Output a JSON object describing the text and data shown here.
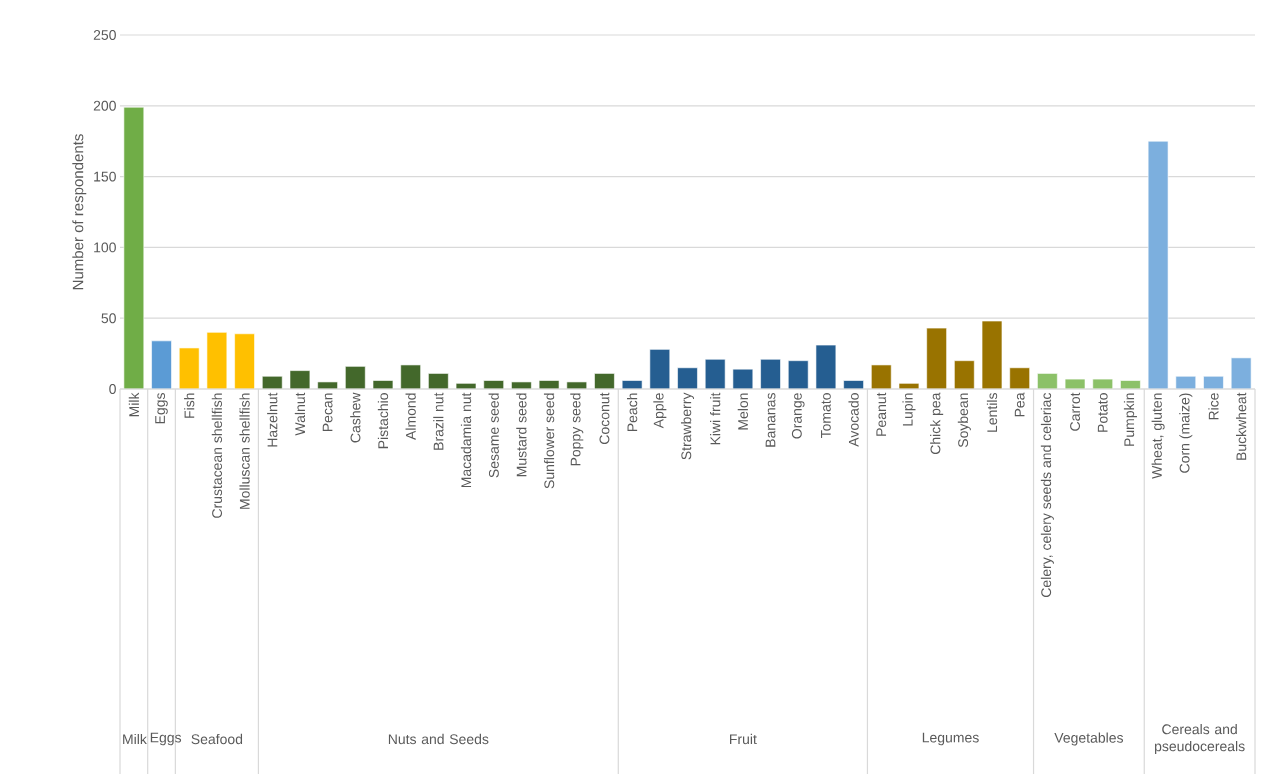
{
  "chart_data": {
    "type": "bar",
    "ylabel": "Number of respondents",
    "categories": [
      "Milk",
      "Eggs",
      "Fish",
      "Crustacean shellfish",
      "Molluscan shellfish",
      "Hazelnut",
      "Walnut",
      "Pecan",
      "Cashew",
      "Pistachio",
      "Almond",
      "Brazil nut",
      "Macadamia nut",
      "Sesame seed",
      "Mustard seed",
      "Sunflower seed",
      "Poppy seed",
      "Coconut",
      "Peach",
      "Apple",
      "Strawberry",
      "Kiwi fruit",
      "Melon",
      "Bananas",
      "Orange",
      "Tomato",
      "Avocado",
      "Peanut",
      "Lupin",
      "Chick pea",
      "Soybean",
      "Lentils",
      "Pea",
      "Celery, celery seeds and celeriac",
      "Carrot",
      "Potato",
      "Pumpkin",
      "Wheat, gluten",
      "Corn (maize)",
      "Rice",
      "Buckwheat"
    ],
    "series": [
      {
        "color": "#70ad47",
        "values": [
          199,
          null,
          null,
          null,
          null,
          null,
          null,
          null,
          null,
          null,
          null,
          null,
          null,
          null,
          null,
          null,
          null,
          null,
          null,
          null,
          null,
          null,
          null,
          null,
          null,
          null,
          null,
          null,
          null,
          null,
          null,
          null,
          null,
          null,
          null,
          null,
          null,
          null,
          null,
          null,
          null
        ]
      },
      {
        "color": "#5b9bd5",
        "values": [
          null,
          34,
          null,
          null,
          null,
          null,
          null,
          null,
          null,
          null,
          null,
          null,
          null,
          null,
          null,
          null,
          null,
          null,
          null,
          null,
          null,
          null,
          null,
          null,
          null,
          null,
          null,
          null,
          null,
          null,
          null,
          null,
          null,
          null,
          null,
          null,
          null,
          null,
          null,
          null,
          null
        ]
      },
      {
        "color": "#ffc000",
        "values": [
          null,
          null,
          29,
          40,
          39,
          null,
          null,
          null,
          null,
          null,
          null,
          null,
          null,
          null,
          null,
          null,
          null,
          null,
          null,
          null,
          null,
          null,
          null,
          null,
          null,
          null,
          null,
          null,
          null,
          null,
          null,
          null,
          null,
          null,
          null,
          null,
          null,
          null,
          null,
          null,
          null
        ]
      },
      {
        "color": "#43682b",
        "values": [
          null,
          null,
          null,
          null,
          null,
          9,
          13,
          5,
          16,
          6,
          17,
          11,
          4,
          6,
          5,
          6,
          5,
          11,
          null,
          null,
          null,
          null,
          null,
          null,
          null,
          null,
          null,
          null,
          null,
          null,
          null,
          null,
          null,
          null,
          null,
          null,
          null,
          null,
          null,
          null,
          null
        ]
      },
      {
        "color": "#255e91",
        "values": [
          null,
          null,
          null,
          null,
          null,
          null,
          null,
          null,
          null,
          null,
          null,
          null,
          null,
          null,
          null,
          null,
          null,
          null,
          6,
          28,
          15,
          21,
          14,
          21,
          20,
          31,
          6,
          null,
          null,
          null,
          null,
          null,
          null,
          null,
          null,
          null,
          null,
          null,
          null,
          null,
          null
        ]
      },
      {
        "color": "#997300",
        "values": [
          null,
          null,
          null,
          null,
          null,
          null,
          null,
          null,
          null,
          null,
          null,
          null,
          null,
          null,
          null,
          null,
          null,
          null,
          null,
          null,
          null,
          null,
          null,
          null,
          null,
          null,
          null,
          17,
          4,
          43,
          20,
          48,
          15,
          null,
          null,
          null,
          null,
          null,
          null,
          null,
          null
        ]
      },
      {
        "color": "#8cc168",
        "values": [
          null,
          null,
          null,
          null,
          null,
          null,
          null,
          null,
          null,
          null,
          null,
          null,
          null,
          null,
          null,
          null,
          null,
          null,
          null,
          null,
          null,
          null,
          null,
          null,
          null,
          null,
          null,
          null,
          null,
          null,
          null,
          null,
          null,
          11,
          7,
          7,
          6,
          null,
          null,
          null,
          null
        ]
      },
      {
        "color": "#7cafde",
        "values": [
          null,
          null,
          null,
          null,
          null,
          null,
          null,
          null,
          null,
          null,
          null,
          null,
          null,
          null,
          null,
          null,
          null,
          null,
          null,
          null,
          null,
          null,
          null,
          null,
          null,
          null,
          null,
          null,
          null,
          null,
          null,
          null,
          null,
          null,
          null,
          null,
          null,
          175,
          9,
          9,
          22
        ]
      }
    ],
    "annotations": [
      "Milk",
      "Eggs",
      "Seafood",
      "Nuts and Seeds",
      "Fruit",
      "Legumes",
      "Vegetables",
      "Cereals and pseudocereals"
    ],
    "ylim": [
      0,
      250
    ],
    "yticks": [
      0,
      50,
      100,
      150,
      200,
      250
    ],
    "grid": "y"
  }
}
